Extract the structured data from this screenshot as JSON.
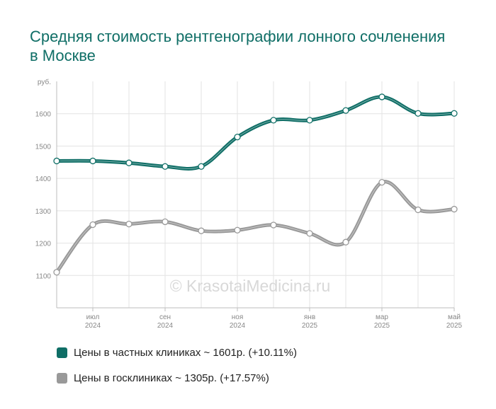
{
  "colors": {
    "private": "#0f6e66",
    "public": "#999999",
    "title": "#0f6e66"
  },
  "chart_data": {
    "type": "line",
    "title": "Средняя стоимость рентгенографии лонного сочленения в Москве",
    "ylabel": "руб.",
    "ylim": [
      1000,
      1700
    ],
    "yticks": [
      "1100",
      "1200",
      "1300",
      "1400",
      "1500",
      "1600"
    ],
    "xticks": [
      {
        "month": "июл",
        "year": "2024"
      },
      {
        "month": "сен",
        "year": "2024"
      },
      {
        "month": "ноя",
        "year": "2024"
      },
      {
        "month": "янв",
        "year": "2025"
      },
      {
        "month": "мар",
        "year": "2025"
      },
      {
        "month": "май",
        "year": "2025"
      }
    ],
    "x": [
      "2024-06",
      "2024-07",
      "2024-08",
      "2024-09",
      "2024-10",
      "2024-11",
      "2024-12",
      "2025-01",
      "2025-02",
      "2025-03",
      "2025-04",
      "2025-05"
    ],
    "grid": true,
    "watermark": "© KrasotaiMedicina.ru",
    "series": [
      {
        "name": "Цены в частных клиниках ~ 1601р. (+10.11%)",
        "color": "#0f6e66",
        "values": [
          1454,
          1454,
          1448,
          1437,
          1437,
          1528,
          1580,
          1580,
          1610,
          1652,
          1601,
          1601
        ]
      },
      {
        "name": "Цены в госклиниках ~ 1305р. (+17.57%)",
        "color": "#999999",
        "values": [
          1110,
          1257,
          1259,
          1266,
          1238,
          1240,
          1256,
          1230,
          1203,
          1388,
          1303,
          1305
        ]
      }
    ]
  }
}
